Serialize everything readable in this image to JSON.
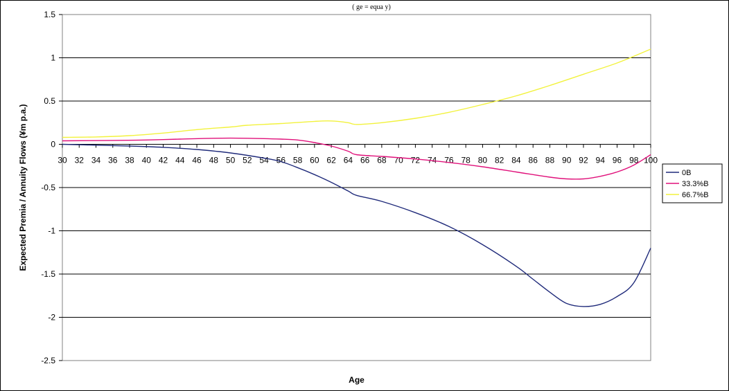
{
  "chart_data": {
    "type": "line",
    "title": "(   ge   =     equa    y)",
    "xlabel": "Age",
    "ylabel": "Expected Premia / Annuity Flows (¥m p.a.)",
    "xlim": [
      30,
      100
    ],
    "ylim": [
      -2.5,
      1.5
    ],
    "x_ticks": [
      30,
      32,
      34,
      36,
      38,
      40,
      42,
      44,
      46,
      48,
      50,
      52,
      54,
      56,
      58,
      60,
      62,
      64,
      66,
      68,
      70,
      72,
      74,
      76,
      78,
      80,
      82,
      84,
      86,
      88,
      90,
      92,
      94,
      96,
      98,
      100
    ],
    "y_ticks": [
      1.5,
      1,
      0.5,
      0,
      -0.5,
      -1,
      -1.5,
      -2,
      -2.5
    ],
    "y_tick_labels": [
      "1.5",
      "1",
      "0.5",
      "0",
      "-0.5",
      "-1",
      "-1.5",
      "-2",
      "-2.5"
    ],
    "grid": "horizontal",
    "legend_position": "right",
    "series": [
      {
        "name": "0B",
        "color": "#1f2a7a",
        "points": [
          [
            30,
            0
          ],
          [
            34,
            -0.01
          ],
          [
            38,
            -0.02
          ],
          [
            42,
            -0.035
          ],
          [
            46,
            -0.06
          ],
          [
            50,
            -0.1
          ],
          [
            54,
            -0.16
          ],
          [
            56,
            -0.2
          ],
          [
            58,
            -0.27
          ],
          [
            60,
            -0.35
          ],
          [
            62,
            -0.44
          ],
          [
            64,
            -0.54
          ],
          [
            65,
            -0.59
          ],
          [
            68,
            -0.66
          ],
          [
            72,
            -0.79
          ],
          [
            76,
            -0.95
          ],
          [
            80,
            -1.16
          ],
          [
            84,
            -1.41
          ],
          [
            86,
            -1.56
          ],
          [
            88,
            -1.71
          ],
          [
            90,
            -1.84
          ],
          [
            92,
            -1.875
          ],
          [
            94,
            -1.85
          ],
          [
            96,
            -1.76
          ],
          [
            98,
            -1.6
          ],
          [
            100,
            -1.2
          ]
        ]
      },
      {
        "name": "33.3%B",
        "color": "#e0107a",
        "points": [
          [
            30,
            0.04
          ],
          [
            36,
            0.045
          ],
          [
            40,
            0.05
          ],
          [
            44,
            0.06
          ],
          [
            48,
            0.07
          ],
          [
            52,
            0.07
          ],
          [
            56,
            0.06
          ],
          [
            58,
            0.05
          ],
          [
            60,
            0.02
          ],
          [
            62,
            -0.02
          ],
          [
            64,
            -0.08
          ],
          [
            65,
            -0.12
          ],
          [
            68,
            -0.14
          ],
          [
            72,
            -0.17
          ],
          [
            76,
            -0.21
          ],
          [
            80,
            -0.26
          ],
          [
            84,
            -0.32
          ],
          [
            88,
            -0.38
          ],
          [
            90,
            -0.4
          ],
          [
            92,
            -0.4
          ],
          [
            94,
            -0.37
          ],
          [
            96,
            -0.32
          ],
          [
            98,
            -0.24
          ],
          [
            100,
            -0.12
          ]
        ]
      },
      {
        "name": "66.7%B",
        "color": "#f2f23c",
        "points": [
          [
            30,
            0.08
          ],
          [
            34,
            0.085
          ],
          [
            38,
            0.1
          ],
          [
            42,
            0.13
          ],
          [
            46,
            0.17
          ],
          [
            50,
            0.2
          ],
          [
            52,
            0.22
          ],
          [
            56,
            0.24
          ],
          [
            60,
            0.265
          ],
          [
            62,
            0.27
          ],
          [
            64,
            0.25
          ],
          [
            65,
            0.23
          ],
          [
            68,
            0.25
          ],
          [
            72,
            0.3
          ],
          [
            76,
            0.37
          ],
          [
            80,
            0.46
          ],
          [
            84,
            0.56
          ],
          [
            88,
            0.68
          ],
          [
            92,
            0.81
          ],
          [
            96,
            0.94
          ],
          [
            100,
            1.1
          ]
        ]
      }
    ]
  }
}
